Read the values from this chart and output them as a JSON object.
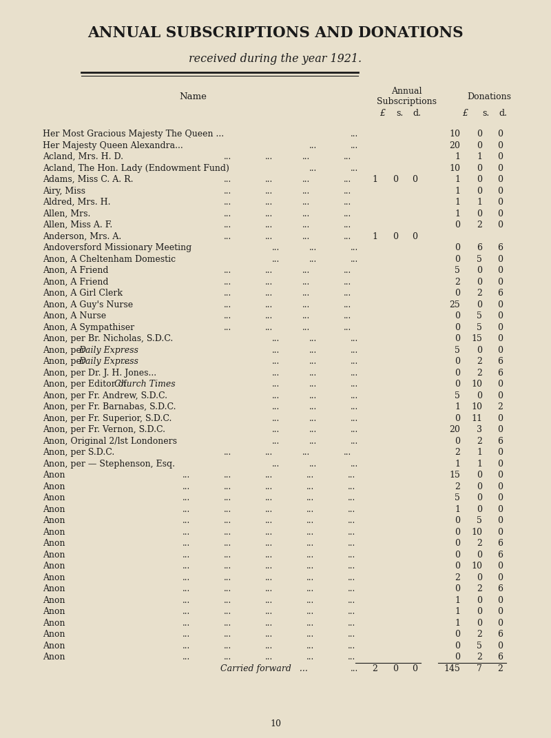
{
  "title": "ANNUAL SUBSCRIPTIONS AND DONATIONS",
  "subtitle": "received during the year 1921.",
  "background_color": "#e8e0cc",
  "text_color": "#1a1a1a",
  "rows": [
    {
      "name": "Her Most Gracious Majesty The Queen ...",
      "style": "sc",
      "ndots": 1,
      "sub": "",
      "don": "10  0  0"
    },
    {
      "name": "Her Majesty Queen Alexandra...",
      "style": "sc",
      "ndots": 2,
      "sub": "",
      "don": "20  0  0"
    },
    {
      "name": "Acland, Mrs. H. D.",
      "style": "normal",
      "ndots": 4,
      "sub": "",
      "don": "1  1  0"
    },
    {
      "name": "Acland, The Hon. Lady (Endowment Fund)",
      "style": "normal",
      "ndots": 2,
      "sub": "",
      "don": "10  0  0"
    },
    {
      "name": "Adams, Miss C. A. R.",
      "style": "normal",
      "ndots": 4,
      "sub": "1  0  0",
      "don": "1  0  0"
    },
    {
      "name": "Airy, Miss",
      "style": "normal",
      "ndots": 4,
      "sub": "",
      "don": "1  0  0"
    },
    {
      "name": "Aldred, Mrs. H.",
      "style": "normal",
      "ndots": 4,
      "sub": "",
      "don": "1  1  0"
    },
    {
      "name": "Allen, Mrs.",
      "style": "normal",
      "ndots": 4,
      "sub": "",
      "don": "1  0  0"
    },
    {
      "name": "Allen, Miss A. F.",
      "style": "normal",
      "ndots": 4,
      "sub": "",
      "don": "0  2  0"
    },
    {
      "name": "Anderson, Mrs. A.",
      "style": "normal",
      "ndots": 4,
      "sub": "1  0  0",
      "don": ""
    },
    {
      "name": "Andoversford Missionary Meeting",
      "style": "normal",
      "ndots": 3,
      "sub": "",
      "don": "0  6  6"
    },
    {
      "name": "Anon, A Cheltenham Domestic",
      "style": "normal",
      "ndots": 3,
      "sub": "",
      "don": "0  5  0"
    },
    {
      "name": "Anon, A Friend",
      "style": "normal",
      "ndots": 4,
      "sub": "",
      "don": "5  0  0"
    },
    {
      "name": "Anon, A Friend",
      "style": "normal",
      "ndots": 4,
      "sub": "",
      "don": "2  0  0"
    },
    {
      "name": "Anon, A Girl Clerk",
      "style": "normal",
      "ndots": 4,
      "sub": "",
      "don": "0  2  6"
    },
    {
      "name": "Anon, A Guy's Nurse",
      "style": "normal",
      "ndots": 4,
      "sub": "",
      "don": "25  0  0"
    },
    {
      "name": "Anon, A Nurse",
      "style": "normal",
      "ndots": 4,
      "sub": "",
      "don": "0  5  0"
    },
    {
      "name": "Anon, A Sympathiser",
      "style": "normal",
      "ndots": 4,
      "sub": "",
      "don": "0  5  0"
    },
    {
      "name": "Anon, per Br. Nicholas, S.D.C.",
      "style": "normal",
      "ndots": 3,
      "sub": "",
      "don": "0 15  0"
    },
    {
      "name": "Anon, per ",
      "italic": "Daily Express",
      "after": "",
      "style": "italic_partial",
      "ndots": 3,
      "sub": "",
      "don": "5  0  0"
    },
    {
      "name": "Anon, per ",
      "italic": "Daily Express",
      "after": " ...",
      "style": "italic_partial",
      "ndots": 3,
      "sub": "",
      "don": "0  2  6"
    },
    {
      "name": "Anon, per Dr. J. H. Jones...",
      "style": "normal",
      "ndots": 3,
      "sub": "",
      "don": "0  2  6"
    },
    {
      "name": "Anon, per Editor of ",
      "italic": "Church Times",
      "after": " ...",
      "style": "italic_partial",
      "ndots": 3,
      "sub": "",
      "don": "0 10  0"
    },
    {
      "name": "Anon, per Fr. Andrew, S.D.C.",
      "style": "normal",
      "ndots": 3,
      "sub": "",
      "don": "5  0  0"
    },
    {
      "name": "Anon, per Fr. Barnabas, S.D.C.",
      "style": "normal",
      "ndots": 3,
      "sub": "",
      "don": "1 10  2"
    },
    {
      "name": "Anon, per Fr. Superior, S.D.C.",
      "style": "normal",
      "ndots": 3,
      "sub": "",
      "don": "0 11  0"
    },
    {
      "name": "Anon, per Fr. Vernon, S.D.C.",
      "style": "normal",
      "ndots": 3,
      "sub": "",
      "don": "20  3  0"
    },
    {
      "name": "Anon, Original 2/lst Londoners",
      "style": "normal",
      "ndots": 3,
      "sub": "",
      "don": "0  2  6"
    },
    {
      "name": "Anon, per S.D.C.",
      "style": "normal",
      "ndots": 4,
      "sub": "",
      "don": "2  1  0"
    },
    {
      "name": "Anon, per — Stephenson, Esq.",
      "style": "normal",
      "ndots": 3,
      "sub": "",
      "don": "1  1  0"
    },
    {
      "name": "Anon",
      "style": "normal",
      "ndots": 5,
      "sub": "",
      "don": "15  0  0"
    },
    {
      "name": "Anon",
      "style": "normal",
      "ndots": 5,
      "sub": "",
      "don": "2  0  0"
    },
    {
      "name": "Anon",
      "style": "normal",
      "ndots": 5,
      "sub": "",
      "don": "5  0  0"
    },
    {
      "name": "Anon",
      "style": "normal",
      "ndots": 5,
      "sub": "",
      "don": "1  0  0"
    },
    {
      "name": "Anon",
      "style": "normal",
      "ndots": 5,
      "sub": "",
      "don": "0  5  0"
    },
    {
      "name": "Anon",
      "style": "normal",
      "ndots": 5,
      "sub": "",
      "don": "0 10  0"
    },
    {
      "name": "Anon",
      "style": "normal",
      "ndots": 5,
      "sub": "",
      "don": "0  2  6"
    },
    {
      "name": "Anon",
      "style": "normal",
      "ndots": 5,
      "sub": "",
      "don": "0  0  6"
    },
    {
      "name": "Anon",
      "style": "normal",
      "ndots": 5,
      "sub": "",
      "don": "0 10  0"
    },
    {
      "name": "Anon",
      "style": "normal",
      "ndots": 5,
      "sub": "",
      "don": "2  0  0"
    },
    {
      "name": "Anon",
      "style": "normal",
      "ndots": 5,
      "sub": "",
      "don": "0  2  6"
    },
    {
      "name": "Anon",
      "style": "normal",
      "ndots": 5,
      "sub": "",
      "don": "1  0  0"
    },
    {
      "name": "Anon",
      "style": "normal",
      "ndots": 5,
      "sub": "",
      "don": "1  0  0"
    },
    {
      "name": "Anon",
      "style": "normal",
      "ndots": 5,
      "sub": "",
      "don": "1  0  0"
    },
    {
      "name": "Anon",
      "style": "normal",
      "ndots": 5,
      "sub": "",
      "don": "0  2  6"
    },
    {
      "name": "Anon",
      "style": "normal",
      "ndots": 5,
      "sub": "",
      "don": "0  5  0"
    },
    {
      "name": "Anon",
      "style": "normal",
      "ndots": 5,
      "sub": "",
      "don": "0  2  6"
    }
  ],
  "footer_sub": "2  0  0",
  "footer_don": "145  7  2",
  "page_number": "10"
}
